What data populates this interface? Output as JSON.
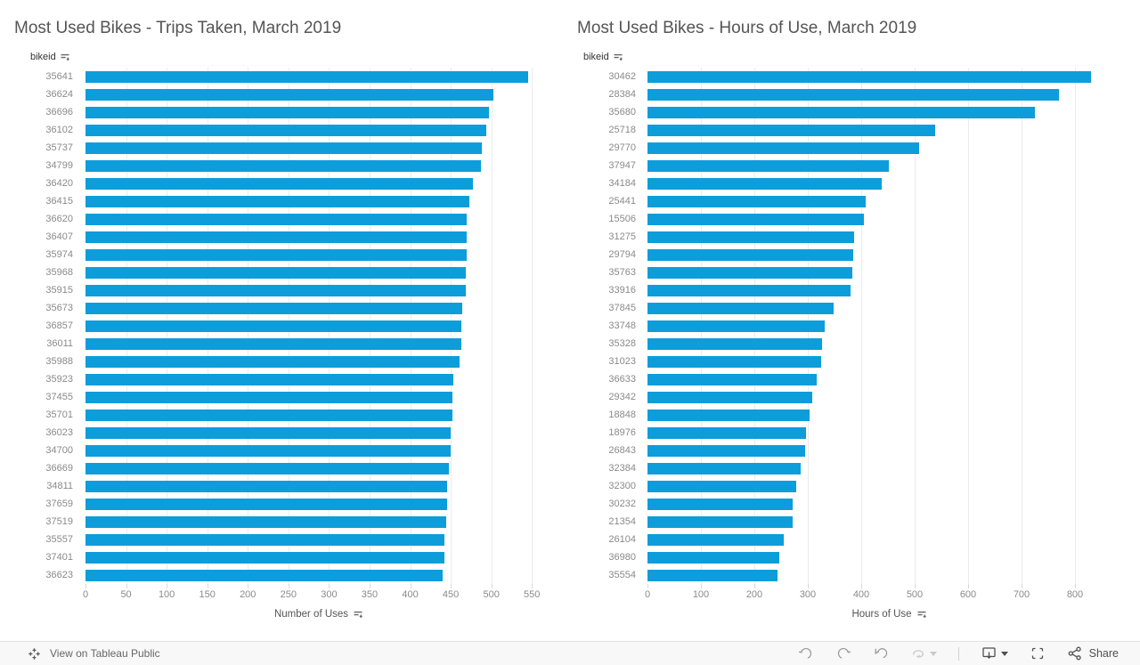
{
  "colors": {
    "bar": "#0d9dda",
    "title_text": "#555555",
    "label_text": "#8a8a8a",
    "header_text": "#333333",
    "gridline": "#ececec",
    "toolbar_bg": "#f8f8f8",
    "toolbar_text": "#666666",
    "icon_enabled": "#4f4f4f",
    "icon_muted": "#9b9b9b",
    "icon_disabled": "#c9c9c9"
  },
  "toolbar": {
    "view_on_tableau": "View on Tableau Public",
    "share": "Share",
    "icons": [
      "tableau-logo",
      "undo",
      "redo",
      "revert",
      "refresh",
      "download",
      "fullscreen",
      "share"
    ]
  },
  "chart_data": [
    {
      "type": "bar",
      "orientation": "horizontal",
      "title": "Most Used Bikes - Trips Taken, March 2019",
      "field_header": "bikeid",
      "xlabel": "Number of Uses",
      "ylabel": "bikeid",
      "sort": "descending",
      "grid": true,
      "xticks": [
        0,
        50,
        100,
        150,
        200,
        250,
        300,
        350,
        400,
        450,
        500,
        550
      ],
      "xlim": [
        0,
        575
      ],
      "categories": [
        "35641",
        "36624",
        "36696",
        "36102",
        "35737",
        "34799",
        "36420",
        "36415",
        "36620",
        "36407",
        "35974",
        "35968",
        "35915",
        "35673",
        "36857",
        "36011",
        "35988",
        "35923",
        "37455",
        "35701",
        "36023",
        "34700",
        "36669",
        "34811",
        "37659",
        "37519",
        "35557",
        "37401",
        "36623"
      ],
      "values": [
        545,
        503,
        497,
        494,
        488,
        487,
        477,
        473,
        470,
        470,
        470,
        469,
        469,
        464,
        463,
        463,
        461,
        453,
        452,
        452,
        450,
        450,
        448,
        446,
        445,
        444,
        442,
        442,
        440
      ]
    },
    {
      "type": "bar",
      "orientation": "horizontal",
      "title": "Most Used Bikes - Hours of Use, March 2019",
      "field_header": "bikeid",
      "xlabel": "Hours of Use",
      "ylabel": "bikeid",
      "sort": "descending",
      "grid": true,
      "xticks": [
        0,
        100,
        200,
        300,
        400,
        500,
        600,
        700,
        800
      ],
      "xlim": [
        0,
        905
      ],
      "categories": [
        "30462",
        "28384",
        "35680",
        "25718",
        "29770",
        "37947",
        "34184",
        "25441",
        "15506",
        "31275",
        "29794",
        "35763",
        "33916",
        "37845",
        "33748",
        "35328",
        "31023",
        "36633",
        "29342",
        "18848",
        "18976",
        "26843",
        "32384",
        "32300",
        "30232",
        "21354",
        "26104",
        "36980",
        "35554"
      ],
      "values": [
        830,
        770,
        725,
        538,
        509,
        452,
        439,
        409,
        405,
        387,
        385,
        383,
        380,
        348,
        332,
        327,
        325,
        317,
        308,
        303,
        297,
        295,
        287,
        278,
        272,
        271,
        255,
        247,
        243
      ]
    }
  ]
}
